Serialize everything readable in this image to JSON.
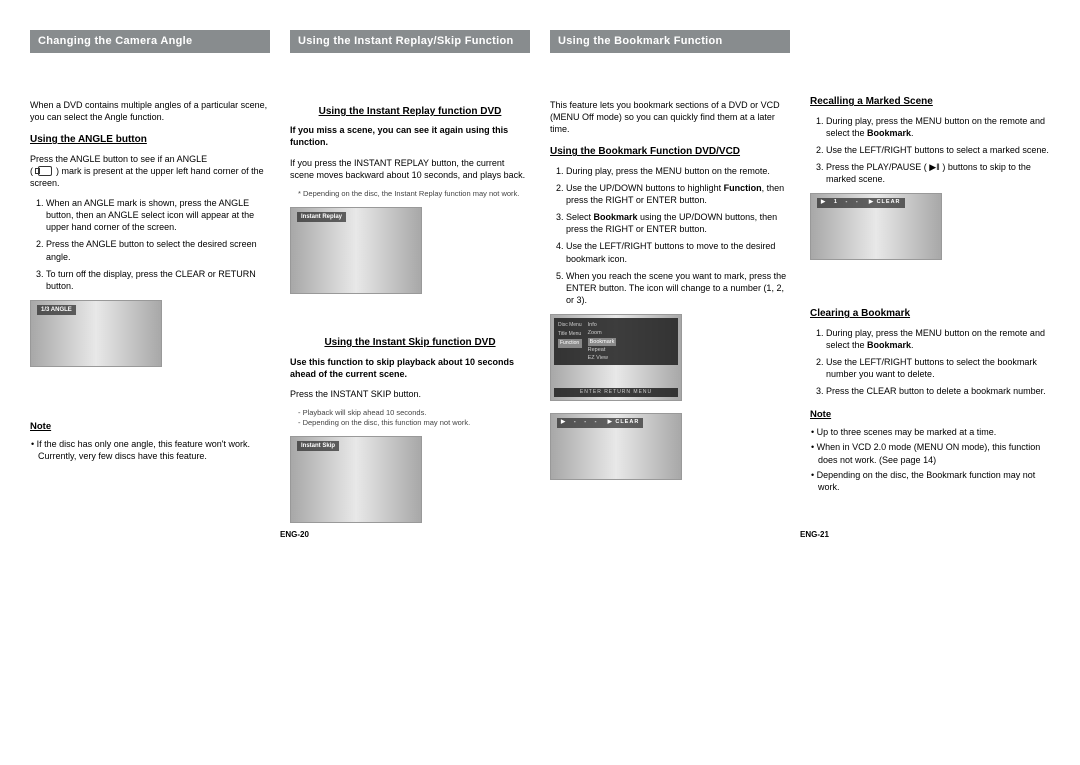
{
  "headers": {
    "camera": "Changing the Camera Angle",
    "replay": "Using the Instant Replay/Skip Function",
    "bookmark": "Using the Bookmark Function"
  },
  "col1": {
    "intro": "When a DVD contains multiple angles of a particular scene, you can select the Angle function.",
    "sec1_title": "Using the ANGLE button",
    "sec1_p1": "Press the ANGLE button to see if an ANGLE",
    "sec1_p2": ") mark is present at the upper left hand corner of the screen.",
    "sec1_steps": [
      "When an ANGLE mark is shown, press the ANGLE button, then an ANGLE select icon will appear at the upper hand corner of the screen.",
      "Press the ANGLE button to select the desired screen angle.",
      "To turn off the display, press the CLEAR or RETURN button."
    ],
    "screen_label": "1/3  ANGLE",
    "note_title": "Note",
    "note_items": [
      "If the disc has only one angle, this feature won't work. Currently, very few discs have this feature."
    ]
  },
  "col2": {
    "sec1_title": "Using the Instant Replay function DVD",
    "sec1_bold": "If you miss a scene, you can see it again using this function.",
    "sec1_p": "If you press the INSTANT REPLAY button, the current scene moves backward about 10 seconds, and plays back.",
    "sec1_note": "* Depending on the disc, the Instant Replay function may not work.",
    "screen1_label": "Instant Replay",
    "sec2_title": "Using the Instant Skip function DVD",
    "sec2_bold": "Use this function to skip playback about 10 seconds ahead of the current scene.",
    "sec2_p": "Press the INSTANT SKIP button.",
    "sec2_notes": [
      "- Playback will skip ahead 10 seconds.",
      "- Depending on the disc, this function may not work."
    ],
    "screen2_label": "Instant Skip"
  },
  "col3": {
    "intro": "This feature lets you bookmark sections of a DVD or VCD (MENU Off mode) so you can quickly find them at a later time.",
    "sec1_title": "Using the Bookmark Function DVD/VCD",
    "sec1_steps": [
      "During play, press the MENU button on the remote.",
      "Use the UP/DOWN buttons to highlight <b>Function</b>, then press the RIGHT or ENTER button.",
      "Select <b>Bookmark</b> using the UP/DOWN buttons, then press the RIGHT or ENTER button.",
      "Use the LEFT/RIGHT buttons to move to the desired bookmark icon.",
      "When you reach the scene you want to mark, press the ENTER button. The icon will change to a number (1, 2, or 3)."
    ],
    "menu_items": [
      "Info",
      "Zoom",
      "Bookmark",
      "Repeat",
      "EZ View"
    ],
    "menu_left": [
      "Disc Menu",
      "Title Menu",
      "Function"
    ],
    "menu_bottom": "ENTER    RETURN    MENU"
  },
  "col4": {
    "sec1_title": "Recalling a Marked Scene",
    "sec1_steps": [
      "During play, press the MENU button on the remote and select the <b>Bookmark</b>.",
      "Use the LEFT/RIGHT buttons to select a marked scene.",
      "Press the PLAY/PAUSE ( ▶‖ ) buttons to skip to the marked scene."
    ],
    "sec2_title": "Clearing a Bookmark",
    "sec2_steps": [
      "During play, press the MENU button on the remote and select the <b>Bookmark</b>.",
      "Use the LEFT/RIGHT buttons to select the bookmark number you want to delete.",
      "Press the CLEAR button to delete a bookmark number."
    ],
    "note_title": "Note",
    "note_items": [
      "Up to three scenes may be marked at a time.",
      "When in VCD 2.0 mode (MENU ON mode), this function does not work. (See page 14)",
      "Depending on the disc, the Bookmark function may not work."
    ]
  },
  "page_nums": {
    "left": "ENG-20",
    "right": "ENG-21"
  },
  "colors": {
    "header_bg": "#888c8e",
    "header_text": "#ffffff",
    "body_text": "#000000"
  }
}
